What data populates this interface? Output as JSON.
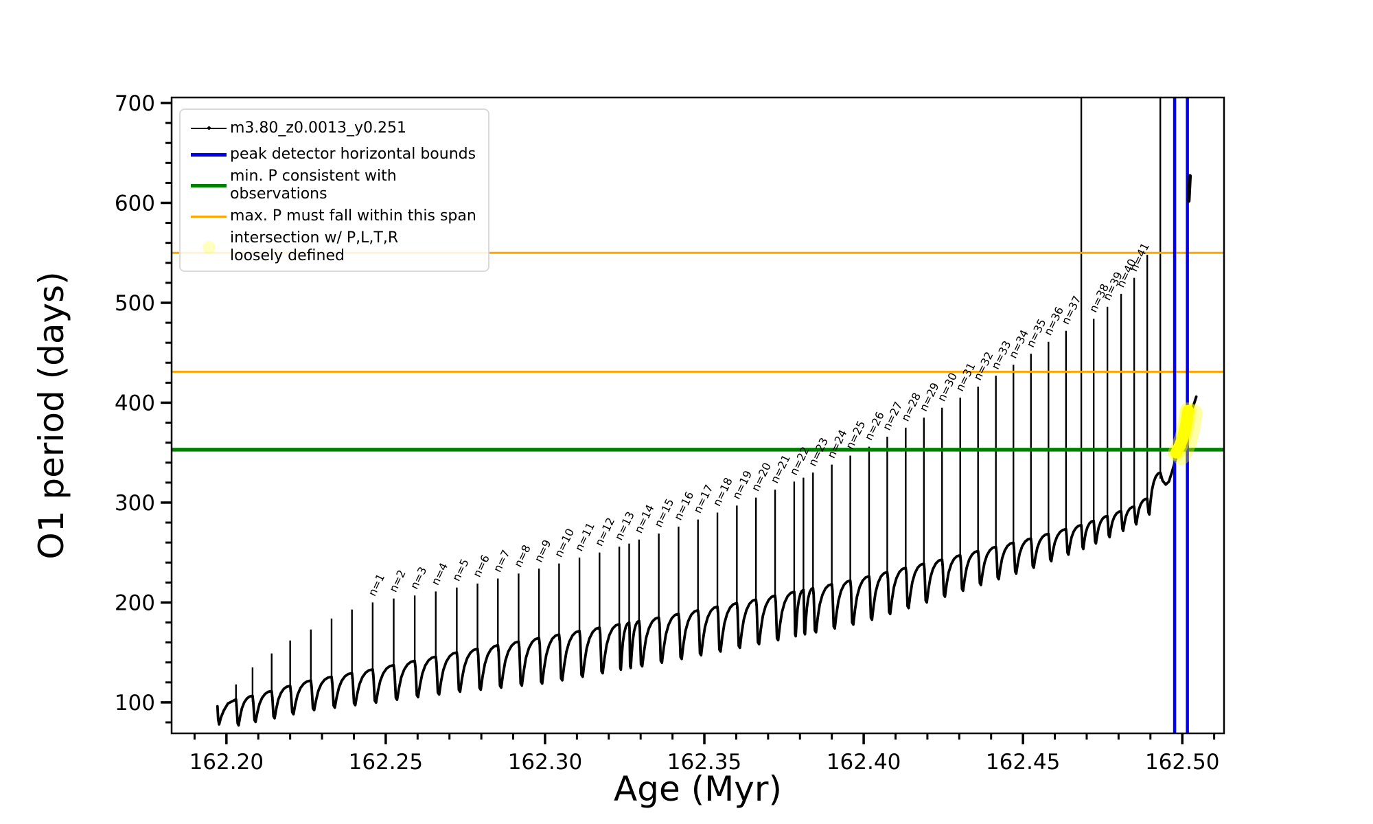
{
  "axes": {
    "xlabel": "Age (Myr)",
    "ylabel": "O1 period (days)",
    "xlim": [
      162.1828,
      162.5131
    ],
    "ylim": [
      69,
      705.5
    ],
    "x_ticks": [
      162.2,
      162.25,
      162.3,
      162.35,
      162.4,
      162.45,
      162.5
    ],
    "x_tick_labels": [
      "162.20",
      "162.25",
      "162.30",
      "162.35",
      "162.40",
      "162.45",
      "162.50"
    ],
    "x_minor_start": 162.19,
    "x_minor_step": 0.01,
    "y_ticks": [
      100,
      200,
      300,
      400,
      500,
      600,
      700
    ],
    "y_tick_labels": [
      "100",
      "200",
      "300",
      "400",
      "500",
      "600",
      "700"
    ],
    "y_minor_start": 80,
    "y_minor_step": 20
  },
  "legend": {
    "entries": [
      {
        "kind": "line-marker",
        "color": "#000000",
        "thickness": 2,
        "label": "m3.80_z0.0013_y0.251"
      },
      {
        "kind": "line",
        "color": "#0000ee",
        "thickness": 5,
        "label": "peak detector horizontal bounds"
      },
      {
        "kind": "line",
        "color": "#008000",
        "thickness": 5,
        "label": "min. P consistent with observations"
      },
      {
        "kind": "line",
        "color": "#ffa500",
        "thickness": 3,
        "label": "max. P must fall within this span"
      },
      {
        "kind": "marker",
        "color": "rgba(255,255,0,0.25)",
        "label_line1": "intersection w/ P,L,T,R",
        "label_line2": "loosely defined"
      }
    ]
  },
  "chart_data": {
    "type": "line",
    "series_name": "m3.80_z0.0013_y0.251",
    "xlabel": "Age (Myr)",
    "ylabel": "O1 period (days)",
    "xlim": [
      162.1828,
      162.5131
    ],
    "ylim": [
      69,
      705.5
    ],
    "grid": false,
    "hlines": [
      {
        "y": 550,
        "color": "#ffa500",
        "lw": 3,
        "meaning": "max. P span upper"
      },
      {
        "y": 431,
        "color": "#ffa500",
        "lw": 3,
        "meaning": "max. P span lower"
      },
      {
        "y": 353,
        "color": "#008000",
        "lw": 5.5,
        "meaning": "min. P consistent with observations"
      }
    ],
    "vlines": [
      {
        "x": 162.4976,
        "color": "#0000ee",
        "lw": 4.5,
        "meaning": "peak detector bound left"
      },
      {
        "x": 162.5016,
        "color": "#0000ee",
        "lw": 4.5,
        "meaning": "peak detector bound right"
      }
    ],
    "curve_start": [
      [
        162.1972,
        96
      ],
      [
        162.1974,
        83
      ],
      [
        162.1977,
        78
      ],
      [
        162.1983,
        85
      ],
      [
        162.1992,
        92
      ],
      [
        162.2005,
        99
      ],
      [
        162.203,
        103
      ]
    ],
    "pulses": [
      [
        162.203,
        118,
        ""
      ],
      [
        162.2082,
        135,
        ""
      ],
      [
        162.2142,
        149,
        ""
      ],
      [
        162.22,
        162,
        ""
      ],
      [
        162.2265,
        173,
        ""
      ],
      [
        162.233,
        184,
        ""
      ],
      [
        162.2394,
        193,
        ""
      ],
      [
        162.2459,
        200,
        "n=1"
      ],
      [
        162.2525,
        204,
        "n=2"
      ],
      [
        162.2591,
        207,
        "n=3"
      ],
      [
        162.2657,
        211,
        "n=4"
      ],
      [
        162.2723,
        215,
        "n=5"
      ],
      [
        162.2788,
        219,
        "n=6"
      ],
      [
        162.2852,
        224,
        "n=7"
      ],
      [
        162.2917,
        229,
        "n=8"
      ],
      [
        162.2981,
        234,
        "n=9"
      ],
      [
        162.3044,
        239,
        "n=10"
      ],
      [
        162.3108,
        245,
        "n=11"
      ],
      [
        162.3171,
        250,
        "n=12"
      ],
      [
        162.3233,
        256,
        "n=13"
      ],
      [
        162.3264,
        259,
        ""
      ],
      [
        162.3295,
        263,
        "n=14"
      ],
      [
        162.3357,
        269,
        "n=15"
      ],
      [
        162.3419,
        276,
        "n=16"
      ],
      [
        162.348,
        283,
        "n=17"
      ],
      [
        162.3541,
        290,
        "n=18"
      ],
      [
        162.3602,
        297,
        "n=19"
      ],
      [
        162.3662,
        305,
        "n=20"
      ],
      [
        162.3722,
        313,
        "n=21"
      ],
      [
        162.3782,
        321,
        "n=22"
      ],
      [
        162.3811,
        325,
        ""
      ],
      [
        162.3841,
        330,
        "n=23"
      ],
      [
        162.39,
        338,
        "n=24"
      ],
      [
        162.3958,
        347,
        "n=25"
      ],
      [
        162.4017,
        356,
        "n=26"
      ],
      [
        162.4074,
        366,
        "n=27"
      ],
      [
        162.4132,
        375,
        "n=28"
      ],
      [
        162.4189,
        385,
        "n=29"
      ],
      [
        162.4246,
        395,
        "n=30"
      ],
      [
        162.4303,
        405,
        "n=31"
      ],
      [
        162.4359,
        416,
        "n=32"
      ],
      [
        162.4415,
        427,
        "n=33"
      ],
      [
        162.447,
        438,
        "n=34"
      ],
      [
        162.4525,
        449,
        "n=35"
      ],
      [
        162.458,
        461,
        "n=36"
      ],
      [
        162.4635,
        472,
        "n=37"
      ],
      [
        162.4683,
        706,
        ""
      ],
      [
        162.4722,
        484,
        "n=38"
      ],
      [
        162.4765,
        496,
        "n=39"
      ],
      [
        162.4808,
        509,
        "n=40"
      ],
      [
        162.4849,
        525,
        "n=41"
      ],
      [
        162.489,
        548,
        ""
      ],
      [
        162.4931,
        706,
        ""
      ]
    ],
    "baseline_points": [
      [
        162.1974,
        97
      ],
      [
        162.205,
        104
      ],
      [
        162.215,
        112
      ],
      [
        162.225,
        121
      ],
      [
        162.2459,
        133
      ],
      [
        162.2723,
        150
      ],
      [
        162.3044,
        168
      ],
      [
        162.3357,
        185
      ],
      [
        162.3662,
        203
      ],
      [
        162.3958,
        222
      ],
      [
        162.4246,
        243
      ],
      [
        162.4525,
        264
      ],
      [
        162.4689,
        278
      ],
      [
        162.4796,
        290
      ],
      [
        162.4849,
        296
      ],
      [
        162.489,
        304
      ],
      [
        162.4931,
        330
      ],
      [
        162.4976,
        345
      ],
      [
        162.4995,
        356
      ],
      [
        162.501,
        367
      ],
      [
        162.5025,
        382
      ],
      [
        162.5038,
        396
      ],
      [
        162.5045,
        405
      ]
    ],
    "dip_depth_points": [
      [
        162.197,
        24
      ],
      [
        162.25,
        34
      ],
      [
        162.3,
        46
      ],
      [
        162.4,
        44
      ],
      [
        162.45,
        30
      ],
      [
        162.48,
        20
      ],
      [
        162.4931,
        14
      ]
    ],
    "curve_tail": [
      [
        162.4938,
        322
      ],
      [
        162.4948,
        318
      ],
      [
        162.4958,
        321
      ],
      [
        162.4968,
        331
      ],
      [
        162.4978,
        342
      ],
      [
        162.4988,
        351
      ],
      [
        162.4998,
        358
      ],
      [
        162.5008,
        368
      ],
      [
        162.5018,
        380
      ],
      [
        162.5028,
        391
      ],
      [
        162.5038,
        400
      ],
      [
        162.5044,
        406
      ]
    ],
    "highlight_segment": {
      "color": "#ffff00",
      "points": [
        [
          162.4981,
          350
        ],
        [
          162.4992,
          357
        ],
        [
          162.5002,
          365
        ],
        [
          162.5011,
          377
        ],
        [
          162.5018,
          392
        ]
      ]
    },
    "stray_segment": [
      [
        162.502,
        602
      ],
      [
        162.5024,
        627
      ]
    ],
    "line_color": "#000000"
  }
}
